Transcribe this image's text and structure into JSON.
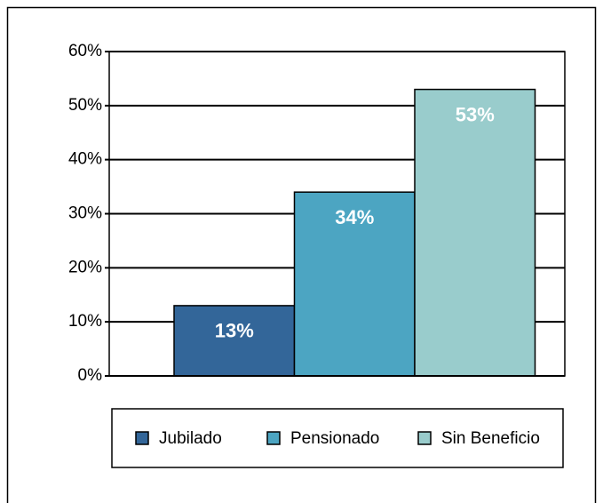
{
  "chart_data": {
    "type": "bar",
    "series": [
      {
        "name": "Jubilado",
        "color": "#336699",
        "values": [
          13
        ],
        "value_labels": [
          "13%"
        ]
      },
      {
        "name": "Pensionado",
        "color": "#4ca5c2",
        "values": [
          34
        ],
        "value_labels": [
          "34%"
        ]
      },
      {
        "name": "Sin Beneficio",
        "color": "#99cccc",
        "values": [
          53
        ],
        "value_labels": [
          "53%"
        ]
      }
    ],
    "ylim": [
      0,
      60
    ],
    "yticks": [
      {
        "value": 0,
        "label": "0%"
      },
      {
        "value": 10,
        "label": "10%"
      },
      {
        "value": 20,
        "label": "20%"
      },
      {
        "value": 30,
        "label": "30%"
      },
      {
        "value": 40,
        "label": "40%"
      },
      {
        "value": 50,
        "label": "50%"
      },
      {
        "value": 60,
        "label": "60%"
      }
    ],
    "grid": true,
    "legend": "bottom"
  }
}
